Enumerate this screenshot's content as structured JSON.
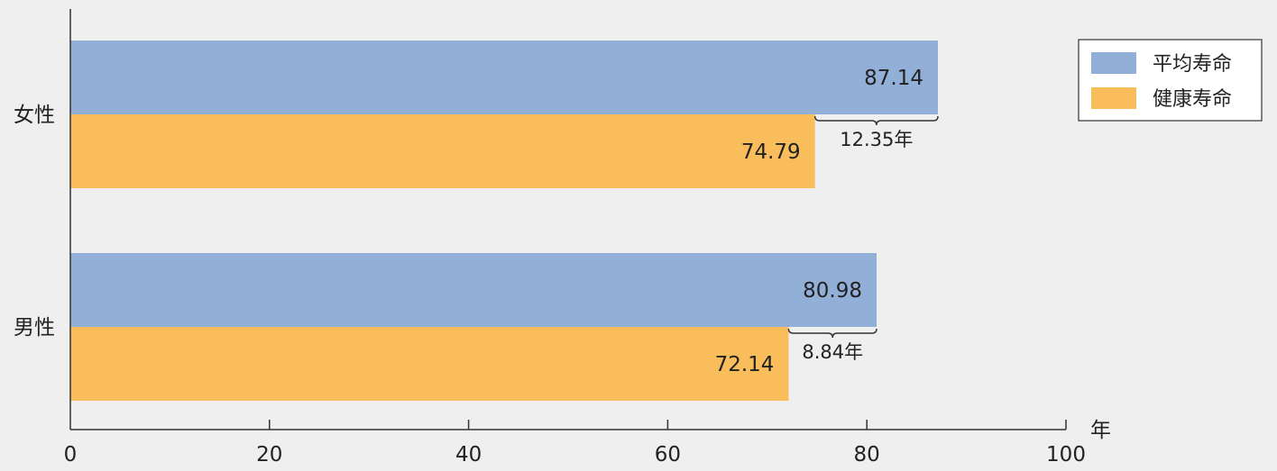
{
  "chart_data": {
    "type": "bar",
    "orientation": "horizontal",
    "categories": [
      "女性",
      "男性"
    ],
    "series": [
      {
        "name": "平均寿命",
        "values": [
          87.14,
          80.98
        ],
        "color": "#92afd7"
      },
      {
        "name": "健康寿命",
        "values": [
          74.79,
          72.14
        ],
        "color": "#f9be5b"
      }
    ],
    "gaps": [
      {
        "category": "女性",
        "label": "12.35年"
      },
      {
        "category": "男性",
        "label": "8.84年"
      }
    ],
    "xlim": [
      0,
      100
    ],
    "xticks": [
      0,
      20,
      40,
      60,
      80,
      100
    ],
    "x_unit": "年",
    "legend": "top-right",
    "grid": false
  }
}
